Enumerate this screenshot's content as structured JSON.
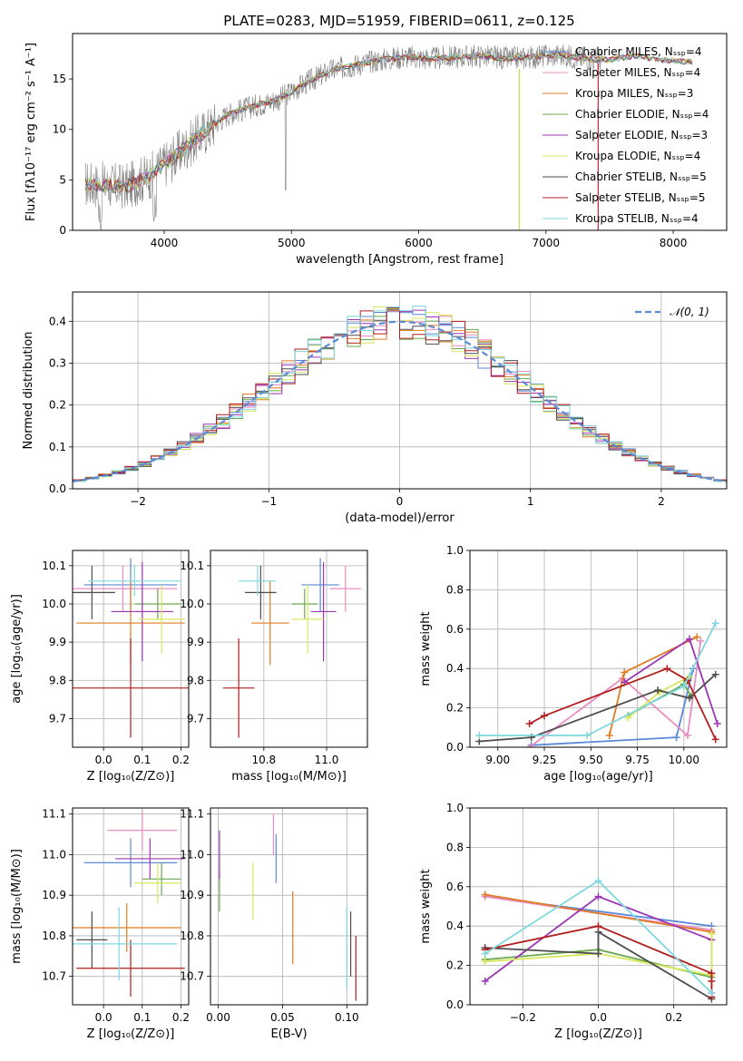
{
  "figure_title": "PLATE=0283, MJD=51959, FIBERID=0611, z=0.125",
  "chart_data": [
    {
      "id": "spectrum",
      "type": "line",
      "xlabel": "wavelength [Angstrom, rest frame]",
      "ylabel": "Flux [fλ10⁻¹⁷ erg cm⁻² s⁻¹ A⁻¹]",
      "xlim": [
        3280,
        8420
      ],
      "ylim": [
        0,
        19.5
      ],
      "xticks": [
        4000,
        5000,
        6000,
        7000,
        8000
      ],
      "yticks": [
        0,
        5,
        10,
        15
      ],
      "grid": false,
      "legend_position": "top-right",
      "continuum_points": [
        [
          3400,
          4.6
        ],
        [
          3700,
          4.3
        ],
        [
          3900,
          5.5
        ],
        [
          4100,
          7.5
        ],
        [
          4300,
          9.6
        ],
        [
          4500,
          11.5
        ],
        [
          4700,
          12.3
        ],
        [
          4900,
          13.0
        ],
        [
          5100,
          14.5
        ],
        [
          5300,
          15.8
        ],
        [
          5500,
          16.4
        ],
        [
          5700,
          16.9
        ],
        [
          5900,
          17.2
        ],
        [
          6100,
          17.0
        ],
        [
          6300,
          17.2
        ],
        [
          6500,
          17.3
        ],
        [
          6700,
          17.0
        ],
        [
          6900,
          17.2
        ],
        [
          7100,
          17.4
        ],
        [
          7300,
          17.0
        ],
        [
          7500,
          16.9
        ],
        [
          7700,
          17.3
        ],
        [
          7900,
          16.9
        ],
        [
          8100,
          16.7
        ]
      ],
      "series": [
        {
          "name": "Chabrier MILES, N_SSP=4",
          "color": "#5b8ad6"
        },
        {
          "name": "Salpeter MILES, N_SSP=4",
          "color": "#e88cc2"
        },
        {
          "name": "Kroupa MILES, N_SSP=3",
          "color": "#e07b20"
        },
        {
          "name": "Chabrier ELODIE, N_SSP=4",
          "color": "#6aa84f"
        },
        {
          "name": "Salpeter ELODIE, N_SSP=3",
          "color": "#9c36b5"
        },
        {
          "name": "Kroupa ELODIE, N_SSP=4",
          "color": "#d6e85a"
        },
        {
          "name": "Chabrier STELIB, N_SSP=5",
          "color": "#4d4d4d"
        },
        {
          "name": "Salpeter STELIB, N_SSP=5",
          "color": "#b21d1d"
        },
        {
          "name": "Kroupa STELIB, N_SSP=4",
          "color": "#7fd8de"
        }
      ]
    },
    {
      "id": "residuals",
      "type": "histogram",
      "xlabel": "(data-model)/error",
      "ylabel": "Normed distribution",
      "xlim": [
        -2.5,
        2.5
      ],
      "ylim": [
        0,
        0.47
      ],
      "xticks": [
        -2,
        -1,
        0,
        1,
        2
      ],
      "yticks": [
        0.0,
        0.1,
        0.2,
        0.3,
        0.4
      ],
      "grid": true,
      "legend": "𝒩(0, 1)",
      "legend_position": "top-right",
      "bin_width": 0.1,
      "reference": "normal(0,1)"
    },
    {
      "id": "age-vs-Z",
      "type": "errorbar",
      "xlabel": "Z [log₁₀(Z/Z⊙)]",
      "ylabel": "age [log₁₀(age/yr)]",
      "xlim": [
        -0.08,
        0.22
      ],
      "ylim": [
        9.625,
        10.14
      ],
      "xticks": [
        0.0,
        0.1,
        0.2
      ],
      "yticks": [
        9.7,
        9.8,
        9.9,
        10.0,
        10.1
      ],
      "grid": true,
      "points": [
        {
          "color": "#5b8ad6",
          "x": 0.07,
          "xerr": 0.12,
          "y": 10.05,
          "yerr": 0.07
        },
        {
          "color": "#e88cc2",
          "x": 0.05,
          "xerr": 0.14,
          "y": 10.04,
          "yerr": 0.06
        },
        {
          "color": "#e07b20",
          "x": 0.07,
          "xerr": 0.14,
          "y": 9.95,
          "yerr": 0.11
        },
        {
          "color": "#6aa84f",
          "x": 0.14,
          "xerr": 0.06,
          "y": 10.0,
          "yerr": 0.04
        },
        {
          "color": "#9c36b5",
          "x": 0.1,
          "xerr": 0.08,
          "y": 9.98,
          "yerr": 0.13
        },
        {
          "color": "#d6e85a",
          "x": 0.15,
          "xerr": 0.06,
          "y": 9.96,
          "yerr": 0.09
        },
        {
          "color": "#4d4d4d",
          "x": -0.03,
          "xerr": 0.06,
          "y": 10.03,
          "yerr": 0.07
        },
        {
          "color": "#b21d1d",
          "x": 0.07,
          "xerr": 0.15,
          "y": 9.78,
          "yerr": 0.13
        },
        {
          "color": "#7fd8de",
          "x": 0.08,
          "xerr": 0.12,
          "y": 10.06,
          "yerr": 0.04
        }
      ]
    },
    {
      "id": "age-vs-mass",
      "type": "errorbar",
      "xlabel": "mass [log₁₀(M/M⊙)]",
      "ylabel": "",
      "xlim": [
        10.63,
        11.13
      ],
      "ylim": [
        9.625,
        10.14
      ],
      "xticks": [
        10.8,
        11.0
      ],
      "yticks": [
        9.7,
        9.8,
        9.9,
        10.0,
        10.1
      ],
      "grid": true,
      "points": [
        {
          "color": "#5b8ad6",
          "x": 10.98,
          "xerr": 0.06,
          "y": 10.05,
          "yerr": 0.07
        },
        {
          "color": "#e88cc2",
          "x": 11.06,
          "xerr": 0.05,
          "y": 10.04,
          "yerr": 0.06
        },
        {
          "color": "#e07b20",
          "x": 10.82,
          "xerr": 0.06,
          "y": 9.95,
          "yerr": 0.11
        },
        {
          "color": "#6aa84f",
          "x": 10.93,
          "xerr": 0.04,
          "y": 10.0,
          "yerr": 0.04
        },
        {
          "color": "#9c36b5",
          "x": 10.99,
          "xerr": 0.04,
          "y": 9.98,
          "yerr": 0.13
        },
        {
          "color": "#d6e85a",
          "x": 10.94,
          "xerr": 0.05,
          "y": 9.96,
          "yerr": 0.09
        },
        {
          "color": "#4d4d4d",
          "x": 10.79,
          "xerr": 0.05,
          "y": 10.03,
          "yerr": 0.07
        },
        {
          "color": "#b21d1d",
          "x": 10.72,
          "xerr": 0.05,
          "y": 9.78,
          "yerr": 0.13
        },
        {
          "color": "#7fd8de",
          "x": 10.78,
          "xerr": 0.06,
          "y": 10.06,
          "yerr": 0.04
        }
      ]
    },
    {
      "id": "massweight-vs-age",
      "type": "line",
      "xlabel": "age [log₁₀(age/yr)]",
      "ylabel": "mass weight",
      "xlim": [
        8.85,
        10.23
      ],
      "ylim": [
        0,
        1.0
      ],
      "xticks": [
        9.0,
        9.25,
        9.5,
        9.75,
        10.0
      ],
      "yticks": [
        0.0,
        0.2,
        0.4,
        0.6,
        0.8,
        1.0
      ],
      "grid": true,
      "series": [
        {
          "color": "#5b8ad6",
          "points": [
            [
              9.18,
              0.01
            ],
            [
              9.96,
              0.05
            ],
            [
              10.05,
              0.4
            ]
          ]
        },
        {
          "color": "#e88cc2",
          "points": [
            [
              9.17,
              0.0
            ],
            [
              9.67,
              0.35
            ],
            [
              10.02,
              0.06
            ],
            [
              10.09,
              0.54
            ]
          ]
        },
        {
          "color": "#e07b20",
          "points": [
            [
              9.6,
              0.06
            ],
            [
              9.68,
              0.38
            ],
            [
              10.07,
              0.56
            ]
          ]
        },
        {
          "color": "#6aa84f",
          "points": [
            [
              9.7,
              0.16
            ],
            [
              10.0,
              0.32
            ],
            [
              10.04,
              0.26
            ]
          ]
        },
        {
          "color": "#9c36b5",
          "points": [
            [
              9.68,
              0.33
            ],
            [
              10.03,
              0.55
            ],
            [
              10.18,
              0.12
            ]
          ]
        },
        {
          "color": "#d6e85a",
          "points": [
            [
              9.7,
              0.15
            ],
            [
              9.87,
              0.28
            ],
            [
              10.03,
              0.36
            ]
          ]
        },
        {
          "color": "#4d4d4d",
          "points": [
            [
              8.9,
              0.03
            ],
            [
              9.18,
              0.05
            ],
            [
              9.86,
              0.29
            ],
            [
              10.03,
              0.25
            ],
            [
              10.17,
              0.37
            ]
          ]
        },
        {
          "color": "#b21d1d",
          "points": [
            [
              9.17,
              0.12
            ],
            [
              9.25,
              0.16
            ],
            [
              9.91,
              0.4
            ],
            [
              10.02,
              0.34
            ],
            [
              10.17,
              0.04
            ]
          ]
        },
        {
          "color": "#7fd8de",
          "points": [
            [
              8.9,
              0.06
            ],
            [
              9.48,
              0.06
            ],
            [
              10.0,
              0.31
            ],
            [
              10.17,
              0.63
            ]
          ]
        }
      ]
    },
    {
      "id": "mass-vs-Z",
      "type": "errorbar",
      "xlabel": "Z [log₁₀(Z/Z⊙)]",
      "ylabel": "mass [log₁₀(M/M⊙)]",
      "xlim": [
        -0.08,
        0.22
      ],
      "ylim": [
        10.63,
        11.115
      ],
      "xticks": [
        0.0,
        0.1,
        0.2
      ],
      "yticks": [
        10.7,
        10.8,
        10.9,
        11.0,
        11.1
      ],
      "grid": true,
      "points": [
        {
          "color": "#5b8ad6",
          "x": 0.07,
          "xerr": 0.12,
          "y": 10.98,
          "yerr": 0.06
        },
        {
          "color": "#e88cc2",
          "x": 0.1,
          "xerr": 0.09,
          "y": 11.06,
          "yerr": 0.05
        },
        {
          "color": "#e07b20",
          "x": 0.06,
          "xerr": 0.14,
          "y": 10.82,
          "yerr": 0.06
        },
        {
          "color": "#6aa84f",
          "x": 0.15,
          "xerr": 0.05,
          "y": 10.94,
          "yerr": 0.04
        },
        {
          "color": "#9c36b5",
          "x": 0.12,
          "xerr": 0.09,
          "y": 10.99,
          "yerr": 0.05
        },
        {
          "color": "#d6e85a",
          "x": 0.14,
          "xerr": 0.06,
          "y": 10.93,
          "yerr": 0.05
        },
        {
          "color": "#4d4d4d",
          "x": -0.03,
          "xerr": 0.04,
          "y": 10.79,
          "yerr": 0.07
        },
        {
          "color": "#b21d1d",
          "x": 0.07,
          "xerr": 0.14,
          "y": 10.72,
          "yerr": 0.07
        },
        {
          "color": "#7fd8de",
          "x": 0.04,
          "xerr": 0.15,
          "y": 10.78,
          "yerr": 0.09
        }
      ]
    },
    {
      "id": "mass-vs-EBV",
      "type": "errorbar",
      "xlabel": "E(B-V)",
      "ylabel": "",
      "xlim": [
        -0.006,
        0.116
      ],
      "ylim": [
        10.63,
        11.115
      ],
      "xticks": [
        0.0,
        0.05,
        0.1
      ],
      "yticks": [
        10.7,
        10.8,
        10.9,
        11.0,
        11.1
      ],
      "grid": true,
      "points": [
        {
          "color": "#5b8ad6",
          "x": 0.045,
          "y": 10.99,
          "yerr": 0.06
        },
        {
          "color": "#e88cc2",
          "x": 0.043,
          "y": 11.05,
          "yerr": 0.05
        },
        {
          "color": "#e07b20",
          "x": 0.058,
          "y": 10.82,
          "yerr": 0.09
        },
        {
          "color": "#6aa84f",
          "x": 0.001,
          "y": 10.91,
          "yerr": 0.05
        },
        {
          "color": "#9c36b5",
          "x": 0.001,
          "y": 11.0,
          "yerr": 0.06
        },
        {
          "color": "#d6e85a",
          "x": 0.027,
          "y": 10.91,
          "yerr": 0.07
        },
        {
          "color": "#4d4d4d",
          "x": 0.103,
          "y": 10.78,
          "yerr": 0.08
        },
        {
          "color": "#b21d1d",
          "x": 0.107,
          "y": 10.72,
          "yerr": 0.08
        },
        {
          "color": "#7fd8de",
          "x": 0.1,
          "y": 10.77,
          "yerr": 0.1
        }
      ]
    },
    {
      "id": "massweight-vs-Z",
      "type": "line",
      "xlabel": "Z [log₁₀(Z/Z⊙)]",
      "ylabel": "mass weight",
      "xlim": [
        -0.34,
        0.34
      ],
      "ylim": [
        0,
        1.0
      ],
      "xticks": [
        -0.2,
        0.0,
        0.2
      ],
      "yticks": [
        0.0,
        0.2,
        0.4,
        0.6,
        0.8,
        1.0
      ],
      "grid": true,
      "series": [
        {
          "color": "#5b8ad6",
          "points": [
            [
              -0.3,
              0.55
            ],
            [
              0.3,
              0.4
            ]
          ]
        },
        {
          "color": "#e88cc2",
          "points": [
            [
              -0.3,
              0.55
            ],
            [
              0.3,
              0.38
            ],
            [
              0.3,
              0.06
            ]
          ]
        },
        {
          "color": "#e07b20",
          "points": [
            [
              -0.3,
              0.56
            ],
            [
              0.3,
              0.37
            ]
          ]
        },
        {
          "color": "#6aa84f",
          "points": [
            [
              -0.3,
              0.23
            ],
            [
              0.0,
              0.28
            ],
            [
              0.3,
              0.14
            ]
          ]
        },
        {
          "color": "#9c36b5",
          "points": [
            [
              -0.3,
              0.12
            ],
            [
              0.0,
              0.55
            ],
            [
              0.3,
              0.33
            ]
          ]
        },
        {
          "color": "#d6e85a",
          "points": [
            [
              -0.3,
              0.22
            ],
            [
              0.0,
              0.26
            ],
            [
              0.3,
              0.15
            ],
            [
              0.3,
              0.36
            ]
          ]
        },
        {
          "color": "#4d4d4d",
          "points": [
            [
              -0.3,
              0.29
            ],
            [
              0.0,
              0.26
            ],
            [
              0.0,
              0.37
            ],
            [
              0.3,
              0.03
            ]
          ]
        },
        {
          "color": "#b21d1d",
          "points": [
            [
              -0.3,
              0.28
            ],
            [
              0.0,
              0.4
            ],
            [
              0.3,
              0.16
            ],
            [
              0.3,
              0.12
            ],
            [
              0.3,
              0.04
            ]
          ]
        },
        {
          "color": "#7fd8de",
          "points": [
            [
              -0.3,
              0.26
            ],
            [
              0.0,
              0.63
            ],
            [
              0.3,
              0.06
            ]
          ]
        }
      ]
    }
  ]
}
